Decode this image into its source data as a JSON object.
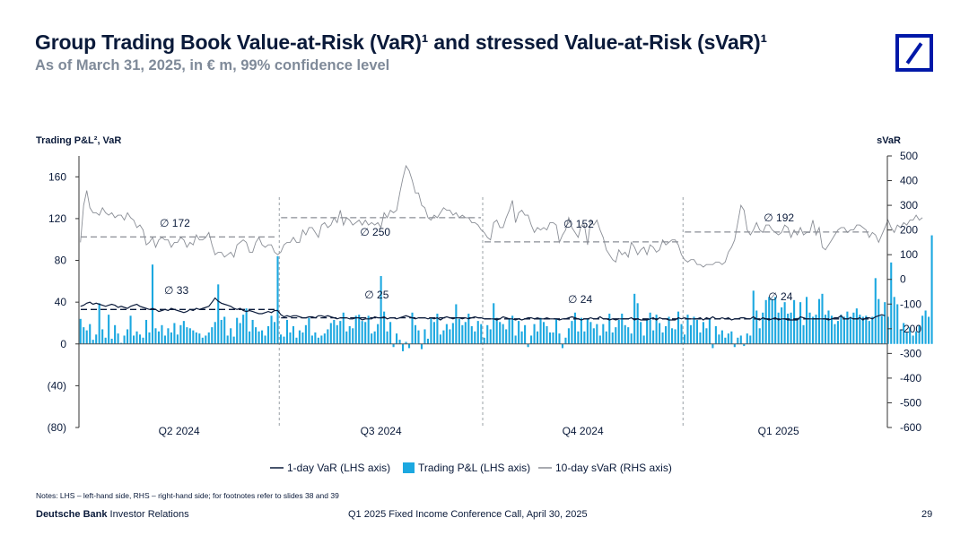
{
  "header": {
    "title": "Group Trading Book Value-at-Risk (VaR)¹ and stressed Value-at-Risk (sVaR)¹",
    "subtitle": "As of March 31, 2025, in € m, 99% confidence level"
  },
  "brand": {
    "logo_icon": "deutsche-bank-logo-icon",
    "color": "#0018a8"
  },
  "chart_data": {
    "type": "bar+line",
    "lhs_label": "Trading P&L², VaR",
    "rhs_label": "sVaR",
    "lhs_range": [
      -80,
      180
    ],
    "lhs_ticks": [
      "160",
      "120",
      "80",
      "40",
      "0",
      "(40)",
      "(80)"
    ],
    "lhs_tick_values": [
      160,
      120,
      80,
      40,
      0,
      -40,
      -80
    ],
    "rhs_range": [
      -600,
      500
    ],
    "rhs_ticks": [
      "500",
      "400",
      "300",
      "200",
      "100",
      "0",
      "-100",
      "-200",
      "-300",
      "-400",
      "-500",
      "-600"
    ],
    "rhs_tick_values": [
      500,
      400,
      300,
      200,
      100,
      0,
      -100,
      -200,
      -300,
      -400,
      -500,
      -600
    ],
    "quarters": [
      "Q2 2024",
      "Q3 2024",
      "Q4 2024",
      "Q1 2025"
    ],
    "days_per_quarter": [
      64,
      65,
      64,
      61
    ],
    "var_averages": [
      {
        "label": "∅ 33",
        "value": 33
      },
      {
        "label": "∅ 25",
        "value": 25
      },
      {
        "label": "∅ 24",
        "value": 24
      },
      {
        "label": "∅ 24",
        "value": 24
      }
    ],
    "svar_averages": [
      {
        "label": "∅ 172",
        "value": 172
      },
      {
        "label": "∅ 250",
        "value": 250
      },
      {
        "label": "∅ 152",
        "value": 152
      },
      {
        "label": "∅ 192",
        "value": 192
      }
    ],
    "series": [
      {
        "name": "1-day VaR (LHS axis)",
        "axis": "lhs",
        "color": "#0a1a3a",
        "values": [
          36,
          37,
          39,
          40,
          38,
          39,
          38,
          37,
          36,
          37,
          38,
          37,
          35,
          36,
          35,
          34,
          36,
          37,
          38,
          36,
          35,
          34,
          33,
          34,
          33,
          31,
          32,
          33,
          32,
          34,
          33,
          32,
          31,
          30,
          31,
          33,
          32,
          34,
          33,
          34,
          35,
          36,
          40,
          44,
          41,
          39,
          38,
          37,
          36,
          34,
          33,
          34,
          32,
          31,
          32,
          31,
          30,
          29,
          29,
          30,
          31,
          30,
          32,
          32,
          28,
          26,
          27,
          26,
          27,
          27,
          26,
          25,
          25,
          26,
          26,
          25,
          27,
          27,
          26,
          27,
          26,
          25,
          24,
          25,
          25,
          25,
          24,
          24,
          25,
          25,
          23,
          24,
          24,
          24,
          26,
          25,
          25,
          26,
          24,
          25,
          25,
          24,
          25,
          26,
          27,
          26,
          25,
          24,
          25,
          25,
          25,
          24,
          25,
          24,
          25,
          23,
          25,
          26,
          25,
          24,
          25,
          25,
          24,
          25,
          24,
          25,
          26,
          25,
          25,
          24,
          24,
          24,
          24,
          23,
          24,
          26,
          25,
          24,
          24,
          23,
          24,
          23,
          24,
          25,
          25,
          24,
          25,
          24,
          24,
          25,
          24,
          24,
          24,
          23,
          24,
          24,
          25,
          26,
          25,
          24,
          23,
          24,
          24,
          25,
          24,
          24,
          26,
          24,
          24,
          23,
          24,
          23,
          24,
          24,
          24,
          24,
          25,
          23,
          24,
          23,
          23,
          23,
          24,
          25,
          23,
          25,
          24,
          24,
          23,
          23,
          23,
          25,
          24,
          25,
          24,
          24,
          24,
          24,
          25,
          23,
          25,
          24,
          26,
          24,
          24,
          25,
          24,
          25,
          23,
          24,
          24,
          25,
          25,
          24,
          24,
          26,
          24,
          23,
          25,
          24,
          23,
          24,
          25,
          23,
          24,
          24,
          23,
          23,
          23,
          23,
          26,
          25,
          24,
          24,
          24,
          24,
          24,
          24,
          24,
          23,
          24,
          25,
          25,
          27,
          24,
          24,
          25,
          24,
          24,
          25,
          23,
          25,
          25,
          24,
          26,
          27,
          28,
          27
        ]
      },
      {
        "name": "Trading P&L (LHS axis)",
        "axis": "lhs",
        "color": "#1ca8e0",
        "values": [
          24,
          16,
          13,
          19,
          4,
          9,
          39,
          14,
          6,
          28,
          5,
          18,
          10,
          1,
          8,
          14,
          27,
          8,
          12,
          9,
          6,
          23,
          11,
          76,
          15,
          12,
          18,
          8,
          15,
          11,
          20,
          9,
          18,
          22,
          16,
          15,
          13,
          11,
          10,
          6,
          8,
          11,
          16,
          21,
          57,
          23,
          26,
          8,
          15,
          7,
          25,
          20,
          28,
          34,
          12,
          23,
          16,
          12,
          13,
          8,
          17,
          27,
          21,
          84,
          9,
          7,
          23,
          11,
          17,
          6,
          13,
          11,
          18,
          25,
          8,
          11,
          6,
          8,
          10,
          14,
          20,
          23,
          18,
          22,
          30,
          12,
          17,
          15,
          27,
          28,
          22,
          21,
          27,
          10,
          12,
          19,
          65,
          31,
          12,
          21,
          -3,
          10,
          4,
          -7,
          2,
          -4,
          30,
          18,
          13,
          -5,
          14,
          5,
          25,
          21,
          29,
          9,
          13,
          19,
          14,
          20,
          38,
          24,
          18,
          21,
          29,
          17,
          12,
          22,
          19,
          6,
          18,
          14,
          39,
          25,
          21,
          19,
          14,
          24,
          27,
          8,
          22,
          12,
          18,
          -3,
          8,
          19,
          12,
          25,
          21,
          17,
          11,
          11,
          24,
          10,
          -4,
          6,
          15,
          22,
          30,
          12,
          25,
          12,
          24,
          21,
          15,
          19,
          8,
          19,
          12,
          29,
          11,
          16,
          23,
          29,
          18,
          16,
          10,
          48,
          39,
          21,
          8,
          24,
          30,
          13,
          28,
          20,
          11,
          17,
          26,
          15,
          14,
          31,
          19,
          9,
          28,
          18,
          26,
          23,
          11,
          21,
          15,
          24,
          -4,
          17,
          9,
          13,
          6,
          10,
          12,
          -3,
          6,
          8,
          -2,
          10,
          8,
          51,
          32,
          15,
          30,
          42,
          45,
          43,
          45,
          30,
          35,
          40,
          29,
          30,
          42,
          25,
          40,
          18,
          45,
          30,
          26,
          28,
          43,
          48,
          28,
          32,
          27,
          19,
          22,
          28,
          26,
          31,
          26,
          30,
          34,
          28,
          26,
          27,
          22,
          26,
          63,
          43,
          27,
          40,
          26,
          78,
          45,
          38,
          14,
          20,
          11,
          16,
          8,
          12,
          18,
          27,
          32,
          26,
          104
        ]
      },
      {
        "name": "10-day sVaR (RHS axis)",
        "axis": "rhs",
        "color": "#8a8e96",
        "values": [
          150,
          300,
          360,
          290,
          270,
          270,
          260,
          290,
          270,
          260,
          270,
          250,
          260,
          260,
          240,
          270,
          250,
          240,
          210,
          220,
          200,
          140,
          150,
          170,
          130,
          160,
          170,
          160,
          160,
          130,
          150,
          150,
          170,
          160,
          130,
          150,
          140,
          180,
          160,
          160,
          170,
          190,
          140,
          100,
          110,
          110,
          90,
          100,
          110,
          90,
          140,
          150,
          160,
          150,
          110,
          110,
          150,
          170,
          140,
          130,
          140,
          140,
          110,
          100,
          110,
          140,
          150,
          150,
          170,
          150,
          150,
          200,
          180,
          210,
          210,
          190,
          170,
          220,
          230,
          210,
          220,
          250,
          230,
          280,
          220,
          250,
          240,
          220,
          230,
          240,
          220,
          240,
          220,
          230,
          220,
          230,
          210,
          270,
          250,
          280,
          270,
          280,
          350,
          410,
          460,
          440,
          400,
          350,
          350,
          300,
          290,
          250,
          240,
          260,
          250,
          270,
          290,
          280,
          280,
          260,
          270,
          250,
          260,
          250,
          250,
          230,
          230,
          220,
          200,
          190,
          170,
          160,
          230,
          240,
          210,
          210,
          250,
          280,
          320,
          230,
          270,
          280,
          260,
          260,
          220,
          190,
          210,
          200,
          210,
          200,
          230,
          230,
          220,
          150,
          180,
          200,
          250,
          210,
          190,
          170,
          220,
          220,
          140,
          240,
          220,
          240,
          200,
          170,
          120,
          100,
          80,
          70,
          120,
          100,
          110,
          90,
          150,
          130,
          100,
          120,
          130,
          100,
          140,
          130,
          110,
          120,
          160,
          140,
          150,
          160,
          160,
          140,
          100,
          80,
          70,
          80,
          80,
          60,
          60,
          50,
          60,
          60,
          60,
          70,
          70,
          60,
          70,
          110,
          130,
          160,
          230,
          300,
          280,
          200,
          180,
          200,
          230,
          200,
          190,
          220,
          220,
          200,
          190,
          180,
          190,
          220,
          210,
          170,
          200,
          180,
          210,
          180,
          190,
          190,
          240,
          180,
          210,
          130,
          120,
          140,
          160,
          180,
          200,
          210,
          210,
          190,
          200,
          200,
          220,
          220,
          210,
          200,
          170,
          190,
          180,
          150,
          180,
          210,
          240,
          210,
          190,
          220,
          210,
          230,
          220,
          240,
          240,
          260,
          240,
          250
        ]
      }
    ],
    "legend": [
      "1-day VaR (LHS axis)",
      "Trading P&L (LHS axis)",
      "10-day sVaR (RHS axis)"
    ]
  },
  "footer": {
    "notes": "Notes: LHS – left-hand side, RHS – right-hand side; for footnotes refer to slides 38 and 39",
    "brand_bold": "Deutsche Bank",
    "brand_rest": " Investor Relations",
    "event": "Q1 2025 Fixed Income Conference Call, April 30, 2025",
    "page": "29"
  }
}
